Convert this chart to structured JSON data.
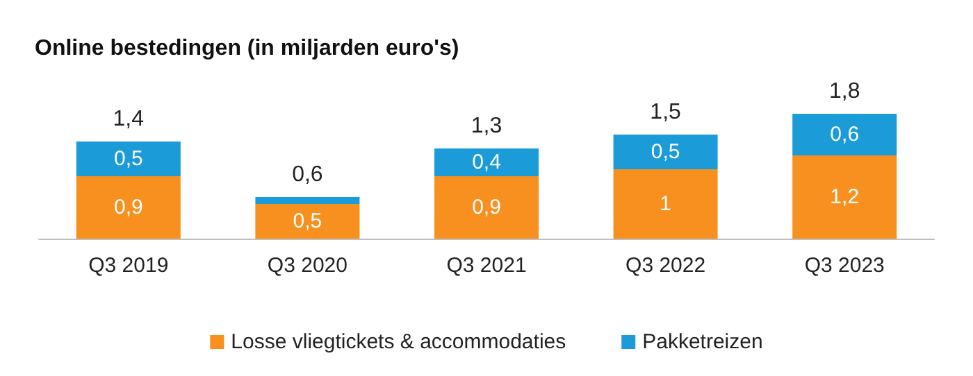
{
  "chart_data": {
    "type": "bar",
    "title": "Online bestedingen (in miljarden euro's)",
    "categories": [
      "Q3 2019",
      "Q3 2020",
      "Q3 2021",
      "Q3 2022",
      "Q3 2023"
    ],
    "stacked": true,
    "legend": "bottom",
    "series": [
      {
        "name": "Losse vliegtickets & accommodaties",
        "color": "#f7901e",
        "values": [
          0.9,
          0.5,
          0.9,
          1,
          1.2
        ],
        "value_labels": [
          "0,9",
          "0,5",
          "0,9",
          "1",
          "1,2"
        ]
      },
      {
        "name": "Pakketreizen",
        "color": "#1b9bd7",
        "values": [
          0.5,
          0.1,
          0.4,
          0.5,
          0.6
        ],
        "value_labels": [
          "0,5",
          null,
          "0,4",
          "0,5",
          "0,6"
        ]
      }
    ],
    "totals": [
      "1,4",
      "0,6",
      "1,3",
      "1,5",
      "1,8"
    ]
  }
}
